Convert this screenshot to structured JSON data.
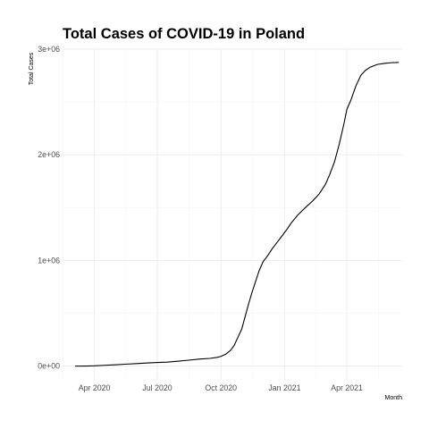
{
  "chart_data": {
    "type": "line",
    "title": "Total Cases of COVID-19 in Poland",
    "xlabel": "Month",
    "ylabel": "Total Cases",
    "grid": true,
    "legend": "none",
    "line_color": "#000000",
    "xlim": [
      "2020-02-15",
      "2021-06-20"
    ],
    "ylim": [
      -130000,
      3000000
    ],
    "x_ticks": [
      {
        "date": "2020-04-01",
        "label": "Apr 2020"
      },
      {
        "date": "2020-07-01",
        "label": "Jul 2020"
      },
      {
        "date": "2020-10-01",
        "label": "Oct 2020"
      },
      {
        "date": "2021-01-01",
        "label": "Jan 2021"
      },
      {
        "date": "2021-04-01",
        "label": "Apr 2021"
      }
    ],
    "y_ticks": [
      {
        "value": 0,
        "label": "0e+00"
      },
      {
        "value": 1000000,
        "label": "1e+06"
      },
      {
        "value": 2000000,
        "label": "2e+06"
      },
      {
        "value": 3000000,
        "label": "3e+06"
      }
    ],
    "series": [
      {
        "x": [
          "2020-03-04",
          "2020-03-20",
          "2020-04-01",
          "2020-04-15",
          "2020-05-01",
          "2020-05-15",
          "2020-06-01",
          "2020-06-15",
          "2020-07-01",
          "2020-07-15",
          "2020-08-01",
          "2020-08-15",
          "2020-09-01",
          "2020-09-15",
          "2020-09-25",
          "2020-10-01",
          "2020-10-08",
          "2020-10-15",
          "2020-10-20",
          "2020-10-25",
          "2020-10-31",
          "2020-11-05",
          "2020-11-10",
          "2020-11-15",
          "2020-11-20",
          "2020-11-25",
          "2020-12-01",
          "2020-12-07",
          "2020-12-14",
          "2020-12-21",
          "2020-12-28",
          "2021-01-05",
          "2021-01-10",
          "2021-01-20",
          "2021-01-31",
          "2021-02-10",
          "2021-02-20",
          "2021-03-01",
          "2021-03-07",
          "2021-03-14",
          "2021-03-21",
          "2021-03-28",
          "2021-04-01",
          "2021-04-07",
          "2021-04-14",
          "2021-04-21",
          "2021-04-28",
          "2021-05-05",
          "2021-05-15",
          "2021-05-25",
          "2021-06-05",
          "2021-06-15"
        ],
        "y": [
          0,
          700,
          2500,
          7500,
          12500,
          18000,
          24000,
          29500,
          34000,
          38000,
          47000,
          56000,
          67000,
          73000,
          82000,
          92000,
          113000,
          150000,
          195000,
          265000,
          350000,
          470000,
          590000,
          700000,
          800000,
          900000,
          990000,
          1040000,
          1110000,
          1170000,
          1230000,
          1300000,
          1350000,
          1430000,
          1500000,
          1560000,
          1630000,
          1720000,
          1810000,
          1930000,
          2100000,
          2300000,
          2430000,
          2520000,
          2650000,
          2750000,
          2800000,
          2830000,
          2855000,
          2865000,
          2872000,
          2875000
        ]
      }
    ]
  }
}
